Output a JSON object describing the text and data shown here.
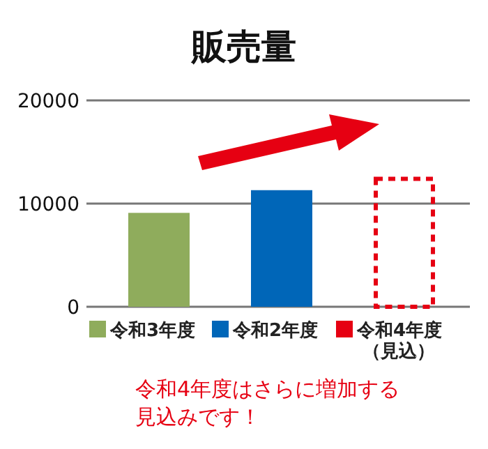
{
  "chart_data": {
    "type": "bar",
    "title": "販売量",
    "categories": [
      null,
      null,
      null
    ],
    "series": [
      {
        "name": "令和3年度",
        "color": "#8fac5c",
        "values": [
          9100,
          null,
          null
        ]
      },
      {
        "name": "令和2年度",
        "color": "#0066b8",
        "values": [
          null,
          11300,
          null
        ]
      },
      {
        "name": "令和4年度（見込）",
        "color": "#e60012",
        "values": [
          null,
          null,
          12600
        ],
        "line_style": "dashed"
      }
    ],
    "ylim": [
      0,
      20000
    ],
    "yticks": [
      0,
      10000,
      20000
    ],
    "grid": "y",
    "legend": "bottom",
    "annotations": [
      "令和4年度はさらに増加する見込みです！"
    ]
  }
}
